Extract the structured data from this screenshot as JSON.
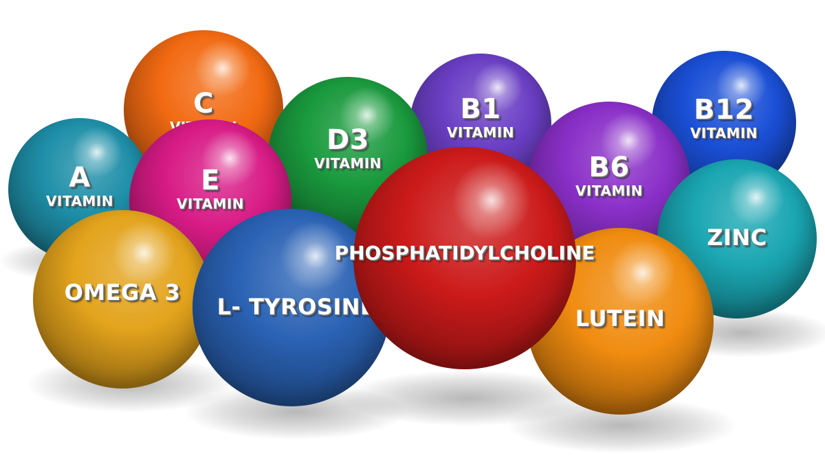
{
  "spheres": {
    "vitamin_c": {
      "letter": "C",
      "word": "VITAMIN",
      "color": "#f26a12"
    },
    "vitamin_a": {
      "letter": "A",
      "word": "VITAMIN",
      "color": "#1e8fa8"
    },
    "vitamin_e": {
      "letter": "E",
      "word": "VITAMIN",
      "color": "#d81b86"
    },
    "vitamin_d3": {
      "letter": "D3",
      "word": "VITAMIN",
      "color": "#1a9a3e"
    },
    "vitamin_b1": {
      "letter": "B1",
      "word": "VITAMIN",
      "color": "#6a3fc4"
    },
    "vitamin_b12": {
      "letter": "B12",
      "word": "VITAMIN",
      "color": "#1a4fd6"
    },
    "vitamin_b6": {
      "letter": "B6",
      "word": "VITAMIN",
      "color": "#8a2fc8"
    },
    "zinc": {
      "label": "ZINC",
      "color": "#1aa6b2"
    },
    "omega3": {
      "label": "OMEGA 3",
      "color": "#e3a31c"
    },
    "ltyrosine": {
      "label": "L- TYROSINE",
      "color": "#2a62b4"
    },
    "phosphatidylcholine": {
      "label": "PHOSPHATIDYLCHOLINE",
      "color": "#cc1a1a"
    },
    "lutein": {
      "label": "LUTEIN",
      "color": "#f08c10"
    }
  }
}
